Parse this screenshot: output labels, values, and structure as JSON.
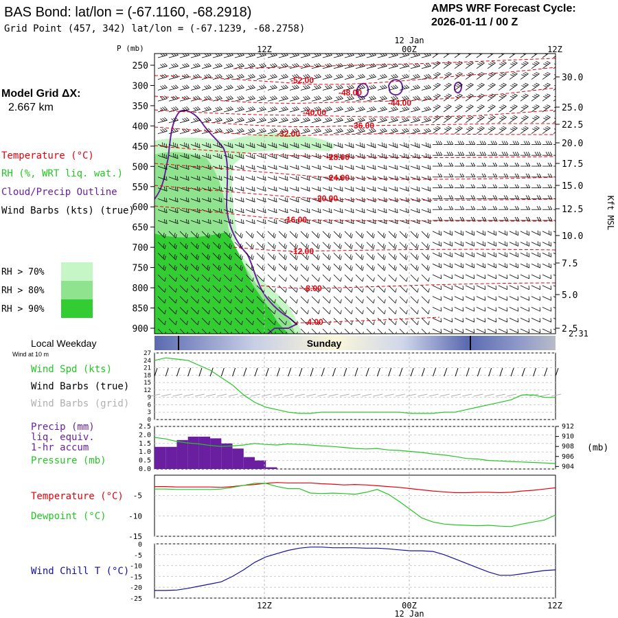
{
  "header": {
    "title": "BAS Bond:  lat/lon = (-67.1160, -68.2918)",
    "grid_point": "Grid Point (457, 342) lat/lon = (-67.1239, -68.2758)",
    "cycle_line1": "AMPS WRF Forecast Cycle:",
    "cycle_line2": "2026-01-11 / 00  Z"
  },
  "colors": {
    "temperature": "#e8000b",
    "rh": "#22c722",
    "cloud": "#6a1fa0",
    "wind": "#000000",
    "wind_grid": "#b0b0b0",
    "precip": "#6a1fa0",
    "pressure": "#22c722",
    "dewpoint": "#22c722",
    "windchill": "#1010a0",
    "rh70": "#c6f5c6",
    "rh80": "#8fe38f",
    "rh90": "#33cc33",
    "day_band": "#5a6ab0"
  },
  "legend": {
    "model_grid_line1": "Model Grid ΔX:",
    "model_grid_line2": "2.667 km",
    "temperature": "Temperature (°C)",
    "rh": "RH (%, WRT liq. wat.)",
    "cloud": "Cloud/Precip Outline",
    "wind_barbs": "Wind Barbs (kts) (true)",
    "rh70": "RH > 70%",
    "rh80": "RH > 80%",
    "rh90": "RH > 90%",
    "local_weekday": "Local Weekday",
    "wind_at": "Wind at 10 m",
    "wind_spd": "Wind Spd (kts)",
    "wind_true": "Wind Barbs (true)",
    "wind_grid": "Wind Barbs (grid)",
    "precip1": "Precip (mm)",
    "precip2": "liq. equiv.",
    "precip3": "1-hr accum",
    "pressure": "Pressure (mb)",
    "temp2": "Temperature (°C)",
    "dewpoint": "Dewpoint (°C)",
    "windchill": "Wind Chill T (°C)",
    "pressure_unit": "(mb)"
  },
  "time_axis": {
    "top_date": "12 Jan",
    "bottom_date": "12 Jan",
    "ticks": [
      "12Z",
      "00Z",
      "12Z"
    ],
    "weekday": "Sunday"
  },
  "chart_data": [
    {
      "type": "heatmap",
      "name": "vertical-cross-section",
      "title": "Time-height section",
      "ylabel": "P (mb)",
      "y_ticks": [
        "250",
        "300",
        "350",
        "400",
        "450",
        "500",
        "550",
        "600",
        "650",
        "700",
        "750",
        "800",
        "850",
        "900"
      ],
      "ylim": [
        920,
        230
      ],
      "right_axis_label": "Kft MSL",
      "right_ticks": [
        "30.0",
        "25.0",
        "22.5",
        "20.0",
        "17.5",
        "15.0",
        "12.5",
        "10.0",
        "7.5",
        "5.0",
        "2.5"
      ],
      "surface_height": "2.31",
      "temperature_contours": [
        "-52.00",
        "-48.00",
        "-44.00",
        "-40.00",
        "-36.00",
        "-32.00",
        "-28.00",
        "-24.00",
        "-20.00",
        "-16.00",
        "-12.00",
        "-8.00",
        "-4.00"
      ]
    },
    {
      "type": "line",
      "name": "wind-speed",
      "ylabel": "Wind Spd (kts)",
      "y_ticks": [
        "27",
        "24",
        "21",
        "18",
        "15",
        "12",
        "9",
        "6",
        "3",
        "0"
      ],
      "ylim": [
        0,
        27
      ],
      "x": [
        0,
        1,
        2,
        3,
        4,
        5,
        6,
        7,
        8,
        9,
        10,
        11,
        12,
        13,
        14,
        15,
        16,
        17,
        18,
        19,
        20,
        21,
        22,
        23,
        24,
        25,
        26,
        27,
        28,
        29,
        30,
        31,
        32,
        33,
        34,
        35,
        36
      ],
      "series": [
        {
          "name": "Wind Spd",
          "values": [
            24,
            25,
            24.5,
            24,
            22,
            20,
            17,
            14,
            10,
            7,
            5,
            4,
            3,
            2.5,
            2.5,
            3,
            3,
            3,
            3,
            3,
            3,
            3,
            3,
            2.5,
            2.5,
            2.5,
            3,
            3,
            4,
            5,
            6,
            7,
            8,
            10,
            10,
            9,
            9
          ]
        }
      ]
    },
    {
      "type": "bar",
      "name": "precip",
      "ylabel": "Precip (mm)",
      "y_ticks": [
        "2.5",
        "2.0",
        "1.5",
        "1.0",
        "0.5",
        "0.0"
      ],
      "ylim": [
        0,
        2.5
      ],
      "values": [
        1.3,
        1.3,
        1.7,
        1.9,
        1.9,
        1.8,
        1.5,
        1.2,
        0.7,
        0.5,
        0.1
      ],
      "right_ticks": [
        "912",
        "910",
        "908",
        "906",
        "904"
      ],
      "right_ylim": [
        903.5,
        912
      ],
      "series": [
        {
          "name": "Pressure",
          "values": [
            909.8,
            909.5,
            909,
            908.7,
            908.5,
            908.2,
            908,
            908.1,
            908.3,
            908.6,
            908.4,
            908.3,
            908.5,
            908.4,
            908.3,
            908.1,
            908,
            907.8,
            907.6,
            907.5,
            907.6,
            907.3,
            907.2,
            907,
            906.8,
            906.5,
            906.3,
            906,
            905.6,
            905.5,
            905.2,
            905.1,
            905,
            904.9,
            904.8,
            904.7,
            904.6
          ]
        }
      ]
    },
    {
      "type": "line",
      "name": "temperature-dewpoint",
      "y_ticks": [
        "-5",
        "-10",
        "-15"
      ],
      "ylim": [
        -15,
        0
      ],
      "x": [
        0,
        1,
        2,
        3,
        4,
        5,
        6,
        7,
        8,
        9,
        10,
        11,
        12,
        13,
        14,
        15,
        16,
        17,
        18,
        19,
        20,
        21,
        22,
        23,
        24,
        25,
        26,
        27,
        28,
        29,
        30,
        31,
        32,
        33,
        34,
        35,
        36
      ],
      "series": [
        {
          "name": "Temperature",
          "values": [
            -2.8,
            -2.8,
            -2.9,
            -2.9,
            -2.9,
            -2.9,
            -3,
            -2.8,
            -2.5,
            -2.3,
            -2,
            -1.8,
            -1.9,
            -1.9,
            -1.9,
            -2.1,
            -2.2,
            -2.4,
            -2.3,
            -2.4,
            -2.6,
            -2.8,
            -3,
            -3.3,
            -3.6,
            -3.9,
            -4.1,
            -4.3,
            -4.3,
            -4.2,
            -4.2,
            -4.3,
            -4.2,
            -3.9,
            -3.7,
            -3.4,
            -3.1
          ]
        },
        {
          "name": "Dewpoint",
          "values": [
            -3.4,
            -3.4,
            -3.5,
            -3.5,
            -3.5,
            -3.5,
            -3.4,
            -3,
            -2.5,
            -2,
            -2,
            -2.8,
            -3.3,
            -3.3,
            -4.4,
            -4.5,
            -4.4,
            -4.5,
            -4.7,
            -4.2,
            -3.5,
            -4.7,
            -6.5,
            -8.5,
            -10.5,
            -11.5,
            -12,
            -12.2,
            -12.3,
            -12.4,
            -12.3,
            -12.5,
            -12.6,
            -12,
            -11.5,
            -11,
            -9.8
          ]
        }
      ]
    },
    {
      "type": "line",
      "name": "wind-chill",
      "y_ticks": [
        "0",
        "-5",
        "-10",
        "-15",
        "-20",
        "-25"
      ],
      "ylim": [
        -25,
        0
      ],
      "x": [
        0,
        1,
        2,
        3,
        4,
        5,
        6,
        7,
        8,
        9,
        10,
        11,
        12,
        13,
        14,
        15,
        16,
        17,
        18,
        19,
        20,
        21,
        22,
        23,
        24,
        25,
        26,
        27,
        28,
        29,
        30,
        31,
        32,
        33,
        34,
        35,
        36
      ],
      "series": [
        {
          "name": "Wind Chill T",
          "values": [
            -21.5,
            -21.5,
            -21.3,
            -20.5,
            -19.5,
            -18.5,
            -17.5,
            -15,
            -12,
            -8.5,
            -6,
            -4.5,
            -3,
            -2,
            -1.5,
            -1.5,
            -1.8,
            -1.8,
            -1.8,
            -2,
            -2,
            -2.3,
            -2.8,
            -3.2,
            -3.2,
            -3.5,
            -5,
            -7,
            -9,
            -11,
            -13,
            -14.5,
            -14.5,
            -13.8,
            -13,
            -12.3,
            -12
          ]
        }
      ]
    }
  ]
}
